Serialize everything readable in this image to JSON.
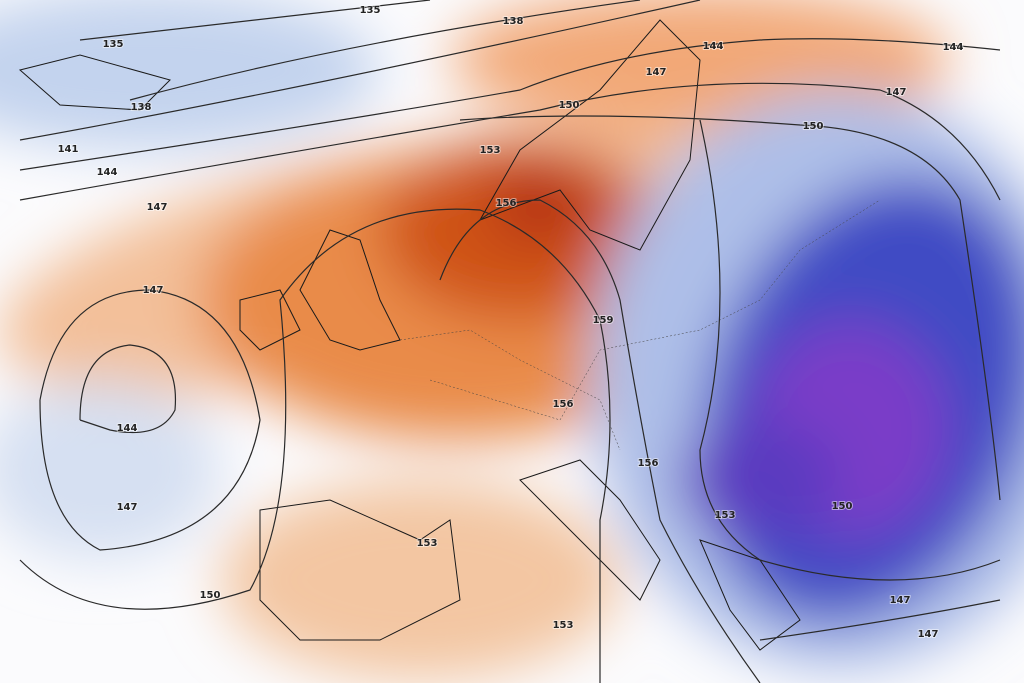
{
  "map": {
    "contour_labels": [
      135,
      138,
      135,
      144,
      144,
      147,
      147,
      138,
      150,
      150,
      141,
      144,
      153,
      147,
      156,
      147,
      159,
      144,
      156,
      156,
      147,
      153,
      150,
      153,
      150,
      147,
      153,
      147
    ]
  }
}
